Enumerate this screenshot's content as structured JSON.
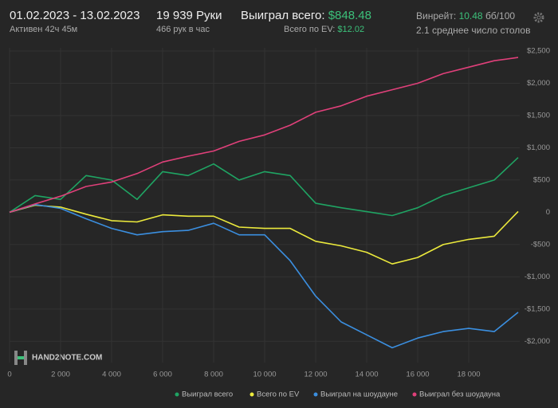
{
  "header": {
    "period": "01.02.2023 - 13.02.2023",
    "active": "Активен 42ч 45м",
    "hands": "19 939 Руки",
    "hands_per_hour": "466 рук в час",
    "won_label": "Выиграл всего:",
    "won_value": "$848.48",
    "ev_label": "Всего по EV:",
    "ev_value": "$12.02",
    "winrate_label": "Винрейт:",
    "winrate_value": "10.48",
    "winrate_unit": "бб/100",
    "tables": "2.1 среднее число столов",
    "logo": "HAND2NOTE.COM"
  },
  "chart_data": {
    "type": "line",
    "x": [
      0,
      1000,
      2000,
      3000,
      4000,
      5000,
      6000,
      7000,
      8000,
      9000,
      10000,
      11000,
      12000,
      13000,
      14000,
      15000,
      16000,
      17000,
      18000,
      19000,
      19939
    ],
    "series": [
      {
        "name": "Выиграл всего",
        "color": "#1fa463",
        "values": [
          0,
          260,
          200,
          570,
          500,
          200,
          630,
          570,
          750,
          500,
          630,
          570,
          140,
          70,
          10,
          -50,
          70,
          260,
          380,
          500,
          848.48
        ]
      },
      {
        "name": "Всего по EV",
        "color": "#ecea3c",
        "values": [
          0,
          110,
          80,
          -30,
          -130,
          -150,
          -40,
          -60,
          -60,
          -230,
          -250,
          -250,
          -450,
          -520,
          -620,
          -800,
          -700,
          -500,
          -420,
          -370,
          12.02
        ]
      },
      {
        "name": "Выиграл на шоудауне",
        "color": "#3b8fe0",
        "values": [
          0,
          120,
          60,
          -100,
          -250,
          -350,
          -300,
          -280,
          -170,
          -350,
          -350,
          -750,
          -1300,
          -1700,
          -1900,
          -2100,
          -1950,
          -1850,
          -1800,
          -1850,
          -1550
        ]
      },
      {
        "name": "Выиграл без шоудауна",
        "color": "#e0407a",
        "values": [
          0,
          130,
          250,
          400,
          470,
          600,
          780,
          870,
          950,
          1100,
          1200,
          1350,
          1550,
          1650,
          1800,
          1900,
          2000,
          2150,
          2250,
          2350,
          2400
        ]
      }
    ],
    "xlim": [
      0,
      20000
    ],
    "ylim": [
      -2330,
      2550
    ],
    "xticks": [
      0,
      {
        "value": 2000,
        "label": "2 000"
      },
      {
        "value": 4000,
        "label": "4 000"
      },
      {
        "value": 6000,
        "label": "6 000"
      },
      {
        "value": 8000,
        "label": "8 000"
      },
      {
        "value": 10000,
        "label": "10 000"
      },
      {
        "value": 12000,
        "label": "12 000"
      },
      {
        "value": 14000,
        "label": "14 000"
      },
      {
        "value": 16000,
        "label": "16 000"
      },
      {
        "value": 18000,
        "label": "18 000"
      }
    ],
    "yticks": [
      {
        "value": 2500,
        "label": "$2,500"
      },
      {
        "value": 2000,
        "label": "$2,000"
      },
      {
        "value": 1500,
        "label": "$1,500"
      },
      {
        "value": 1000,
        "label": "$1,000"
      },
      {
        "value": 500,
        "label": "$500"
      },
      0,
      {
        "value": -500,
        "label": "-$500"
      },
      {
        "value": -1000,
        "label": "-$1,000"
      },
      {
        "value": -1500,
        "label": "-$1,500"
      },
      {
        "value": -2000,
        "label": "-$2,000"
      }
    ],
    "grid": true
  }
}
